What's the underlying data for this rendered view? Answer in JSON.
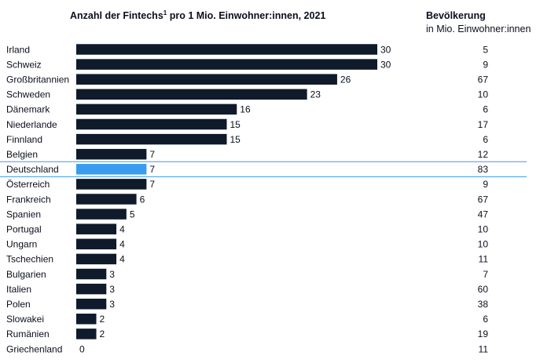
{
  "chart_data": {
    "type": "bar",
    "orientation": "horizontal",
    "title": "Anzahl der Fintechs",
    "title_sup": "1",
    "title_rest": " pro 1 Mio. Einwohner:innen, 2021",
    "population_header": "Bevölkerung",
    "population_subheader": "in Mio. Einwohner:innen",
    "highlight_category": "Deutschland",
    "categories": [
      "Irland",
      "Schweiz",
      "Großbritannien",
      "Schweden",
      "Dänemark",
      "Niederlande",
      "Finnland",
      "Belgien",
      "Deutschland",
      "Österreich",
      "Frankreich",
      "Spanien",
      "Portugal",
      "Ungarn",
      "Tschechien",
      "Bulgarien",
      "Italien",
      "Polen",
      "Slowakei",
      "Rumänien",
      "Griechenland"
    ],
    "series": [
      {
        "values": [
          30,
          30,
          26,
          23,
          16,
          15,
          15,
          7,
          7,
          7,
          6,
          5,
          4,
          4,
          4,
          3,
          3,
          3,
          2,
          2,
          0
        ]
      }
    ],
    "population": [
      5,
      9,
      67,
      10,
      6,
      17,
      6,
      12,
      83,
      9,
      67,
      47,
      10,
      10,
      11,
      7,
      60,
      38,
      6,
      19,
      11
    ],
    "xlim": [
      0,
      30
    ],
    "colors": {
      "bar": "#0f1a2b",
      "highlight": "#3a9cf0",
      "rule": "#3a9cf0"
    }
  }
}
